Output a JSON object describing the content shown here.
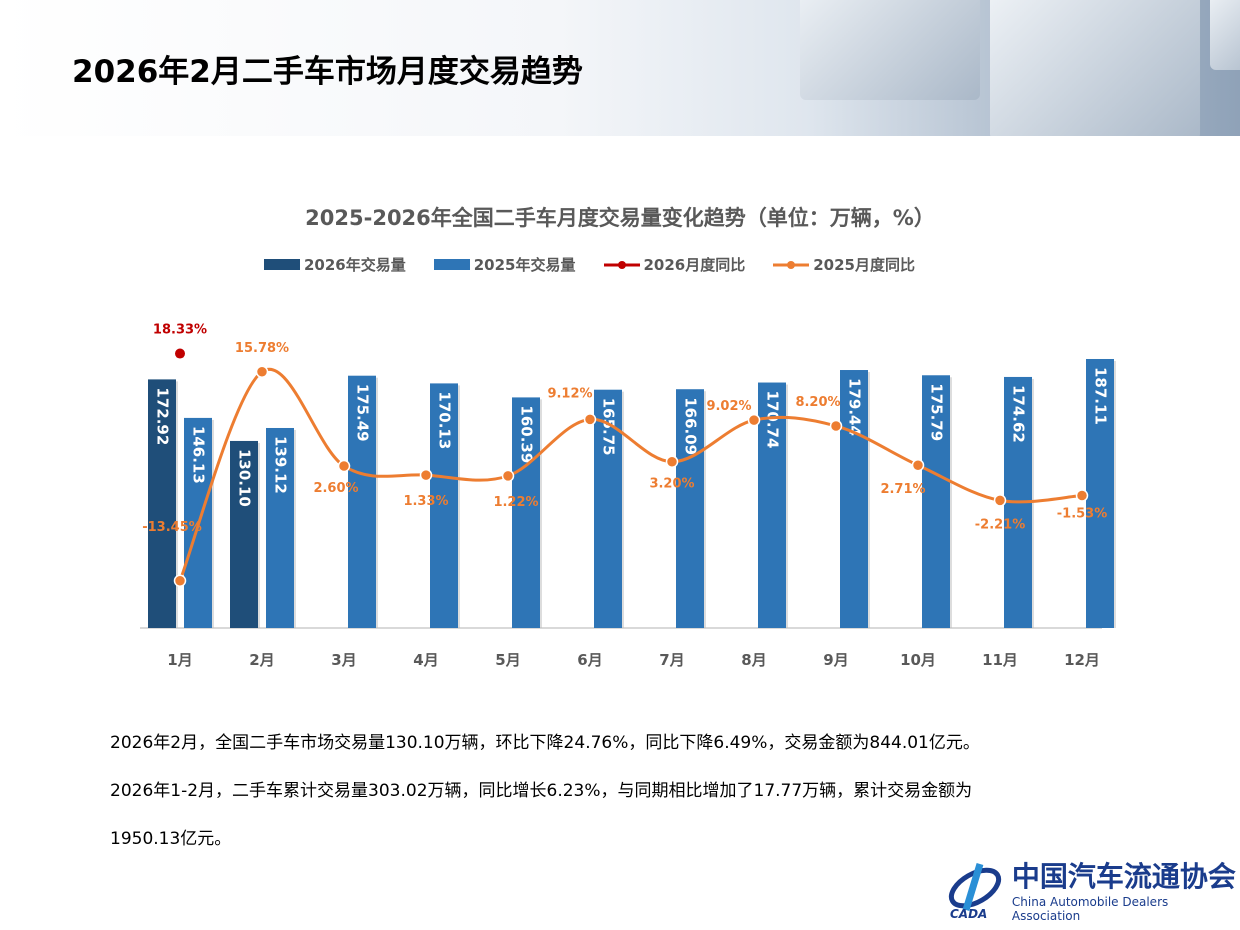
{
  "header": {
    "title": "2026年2月二手车市场月度交易趋势"
  },
  "chart_data": {
    "type": "bar",
    "title": "2025-2026年全国二手车月度交易量变化趋势（单位：万辆，%）",
    "categories": [
      "1月",
      "2月",
      "3月",
      "4月",
      "5月",
      "6月",
      "7月",
      "8月",
      "9月",
      "10月",
      "11月",
      "12月"
    ],
    "series": [
      {
        "name": "2026年交易量",
        "type": "bar",
        "color": "#1f4e79",
        "values": [
          172.92,
          130.1,
          null,
          null,
          null,
          null,
          null,
          null,
          null,
          null,
          null,
          null
        ]
      },
      {
        "name": "2025年交易量",
        "type": "bar",
        "color": "#2e75b6",
        "values": [
          146.13,
          139.12,
          175.49,
          170.13,
          160.39,
          165.75,
          166.09,
          170.74,
          179.44,
          175.79,
          174.62,
          187.11
        ]
      },
      {
        "name": "2026月度同比",
        "type": "line",
        "color": "#c00000",
        "values": [
          18.33,
          null,
          null,
          null,
          null,
          null,
          null,
          null,
          null,
          null,
          null,
          null
        ]
      },
      {
        "name": "2025月度同比",
        "type": "line",
        "color": "#ed7d31",
        "values": [
          -13.45,
          15.78,
          2.6,
          1.33,
          1.22,
          9.12,
          3.2,
          9.02,
          8.2,
          2.71,
          -2.21,
          -1.53
        ]
      }
    ],
    "legend": "top"
  },
  "text": {
    "p1": "2026年2月，全国二手车市场交易量130.10万辆，环比下降24.76%，同比下降6.49%，交易金额为844.01亿元。",
    "p2": "2026年1-2月，二手车累计交易量303.02万辆，同比增长6.23%，与同期相比增加了17.77万辆，累计交易金额为",
    "p3": "1950.13亿元。"
  },
  "logo": {
    "cn": "中国汽车流通协会",
    "en": "China Automobile Dealers Association",
    "mark": "CADA"
  }
}
